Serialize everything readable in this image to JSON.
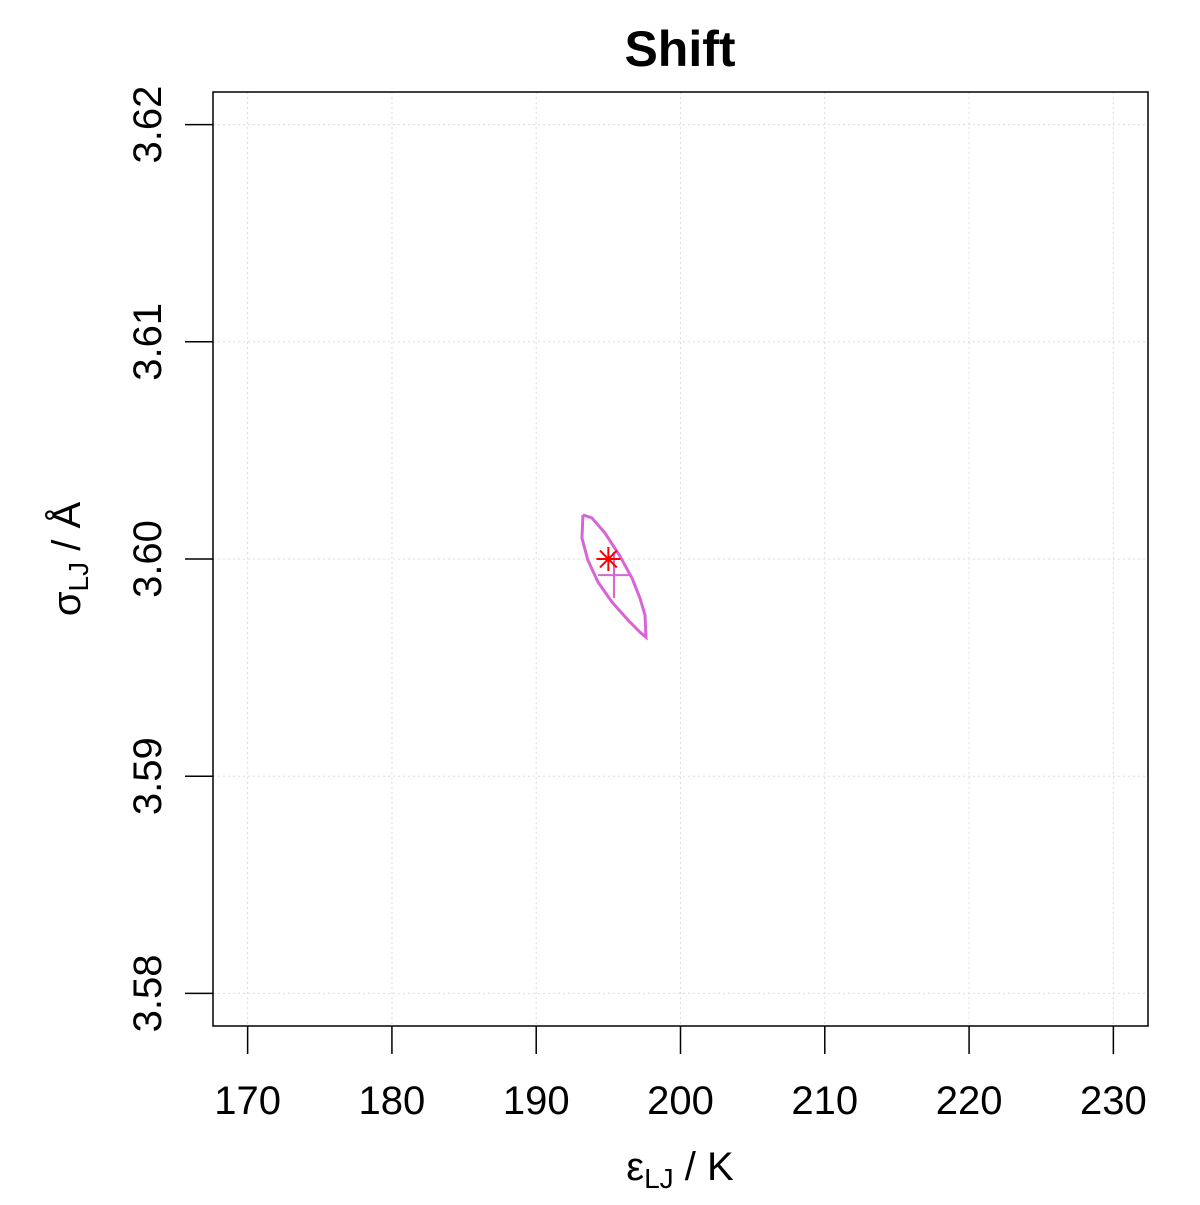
{
  "chart_data": {
    "type": "contour-scatter",
    "title": "Shift",
    "x_label": {
      "symbol": "ε",
      "subscript": "LJ",
      "unit": " / K"
    },
    "y_label": {
      "symbol": "σ",
      "subscript": "LJ",
      "unit": " / Å"
    },
    "xlim": [
      167.6,
      232.4
    ],
    "ylim": [
      3.5785,
      3.6215
    ],
    "xticks": [
      170,
      180,
      190,
      200,
      210,
      220,
      230
    ],
    "yticks": [
      3.58,
      3.59,
      {
        "value": 3.6,
        "label": "3.60"
      },
      3.61,
      3.62
    ],
    "grid": true,
    "contour": {
      "color": "#d865d6",
      "x": [
        193.24,
        193.86,
        194.76,
        195.8,
        196.64,
        197.19,
        197.54,
        197.61,
        197.19,
        196.36,
        195.25,
        194.28,
        193.58,
        193.17,
        193.24
      ],
      "y": [
        3.60203,
        3.60189,
        3.6012,
        3.60014,
        3.59912,
        3.5982,
        3.59742,
        3.5964,
        3.59663,
        3.59719,
        3.59802,
        3.59894,
        3.59995,
        3.60097,
        3.60203
      ]
    },
    "estimate": {
      "color": "#d865d6",
      "x": 195.39,
      "y": 3.59926,
      "xerr": 1.1,
      "yerr": 0.00106
    },
    "reference": {
      "color": "#ff0000",
      "x": 195,
      "y": 3.6
    }
  }
}
